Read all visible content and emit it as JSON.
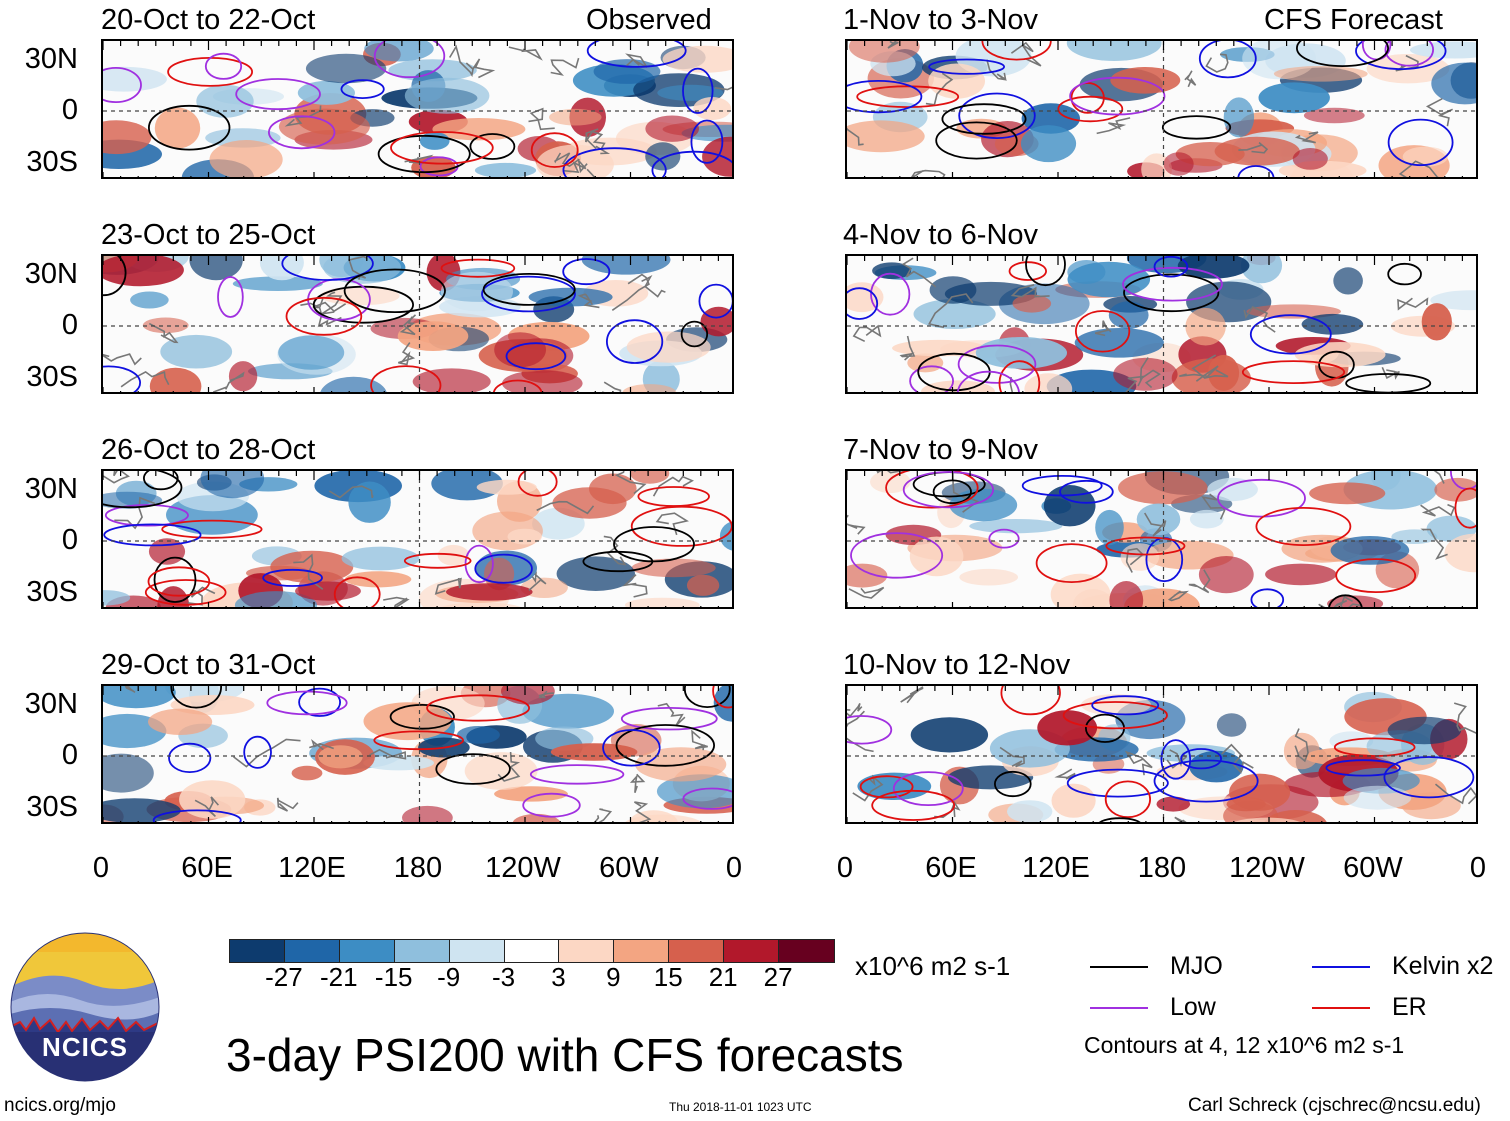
{
  "left_header_label": "Observed",
  "right_header_label": "CFS Forecast",
  "panels_left": [
    {
      "title": "20-Oct to 22-Oct"
    },
    {
      "title": "23-Oct to 25-Oct"
    },
    {
      "title": "26-Oct to 28-Oct"
    },
    {
      "title": "29-Oct to 31-Oct"
    }
  ],
  "panels_right": [
    {
      "title": "1-Nov to 3-Nov"
    },
    {
      "title": "4-Nov to 6-Nov"
    },
    {
      "title": "7-Nov to 9-Nov"
    },
    {
      "title": "10-Nov to 12-Nov"
    }
  ],
  "lat_labels": [
    "30N",
    "0",
    "30S"
  ],
  "lon_labels": [
    "0",
    "60E",
    "120E",
    "180",
    "120W",
    "60W",
    "0"
  ],
  "colorbar": {
    "units": "x10^6 m2 s-1",
    "tick_labels": [
      "-27",
      "-21",
      "-15",
      "-9",
      "-3",
      "3",
      "9",
      "15",
      "21",
      "27"
    ],
    "colors": [
      "#0d3b6e",
      "#1f66a8",
      "#3d8dc4",
      "#8fbfdd",
      "#cfe4f1",
      "#ffffff",
      "#fcd7c4",
      "#f3a582",
      "#d6604d",
      "#b2182b",
      "#67001f"
    ]
  },
  "title": "3-day PSI200 with CFS forecasts",
  "legend": {
    "items": [
      {
        "label": "MJO",
        "color": "#000000"
      },
      {
        "label": "Kelvin x2",
        "color": "#1010e0"
      },
      {
        "label": "Low",
        "color": "#a030e0"
      },
      {
        "label": "ER",
        "color": "#e01010"
      }
    ],
    "contour_note": "Contours at 4, 12 x10^6 m2 s-1"
  },
  "logo": {
    "text": "NCICS"
  },
  "footer": {
    "website": "ncics.org/mjo",
    "timestamp": "Thu 2018-11-01 1023 UTC",
    "author": "Carl Schreck (cjschrec@ncsu.edu)"
  }
}
